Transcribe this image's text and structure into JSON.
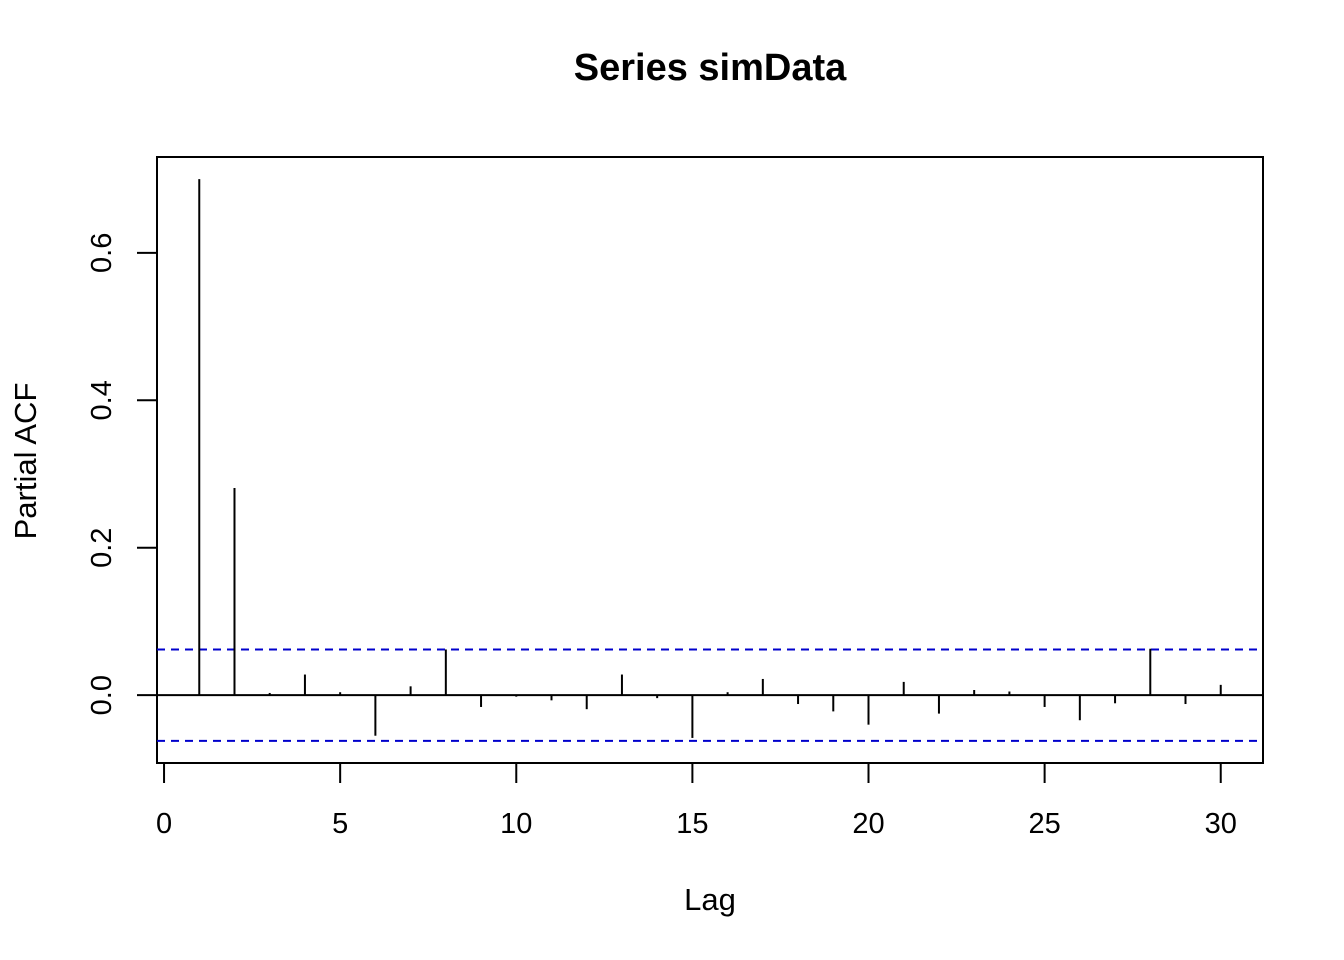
{
  "chart_data": {
    "type": "bar",
    "title": "Series  simData",
    "xlabel": "Lag",
    "ylabel": "Partial ACF",
    "xlim": [
      -0.2,
      31.2
    ],
    "ylim": [
      -0.092,
      0.73
    ],
    "x_ticks": [
      0,
      5,
      10,
      15,
      20,
      25,
      30
    ],
    "y_ticks": [
      0.0,
      0.2,
      0.4,
      0.6
    ],
    "x_tick_labels": [
      "0",
      "5",
      "10",
      "15",
      "20",
      "25",
      "30"
    ],
    "y_tick_labels": [
      "0.0",
      "0.2",
      "0.4",
      "0.6"
    ],
    "confidence_bound": 0.062,
    "confidence_color": "#0000cc",
    "bar_color": "#000000",
    "grid": false,
    "series": [
      {
        "lags": [
          1,
          2,
          3,
          4,
          5,
          6,
          7,
          8,
          9,
          10,
          11,
          12,
          13,
          14,
          15,
          16,
          17,
          18,
          19,
          20,
          21,
          22,
          23,
          24,
          25,
          26,
          27,
          28,
          29,
          30
        ],
        "values": [
          0.7,
          0.281,
          0.003,
          0.028,
          0.004,
          -0.055,
          0.012,
          0.062,
          -0.016,
          -0.002,
          -0.007,
          -0.019,
          0.028,
          -0.004,
          -0.058,
          0.004,
          0.022,
          -0.012,
          -0.022,
          -0.04,
          0.018,
          -0.025,
          0.007,
          0.005,
          -0.016,
          -0.034,
          -0.011,
          0.063,
          -0.012,
          0.014
        ]
      }
    ]
  }
}
